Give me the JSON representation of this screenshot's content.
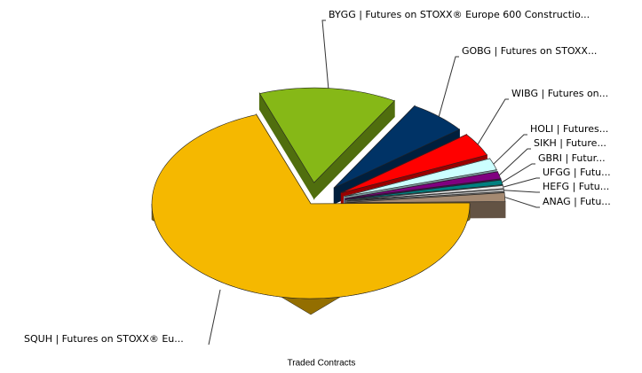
{
  "chart_data": {
    "type": "pie3d",
    "title": "Traded Contracts",
    "categories": [
      "BYGG | Futures on STOXX® Europe 600 Constructio...",
      "GOBG | Futures on STOXX...",
      "WIBG | Futures on...",
      "HOLI | Futures...",
      "SIKH | Future...",
      "GBRI | Futur...",
      "UFGG | Futu...",
      "HEFG | Futu...",
      "ANAG | Futu...",
      "SQUH | Futures on STOXX® Eu..."
    ],
    "values": [
      14,
      6,
      4,
      2,
      1.2,
      0.8,
      0.5,
      0.4,
      1.5,
      69.6
    ],
    "colors": [
      "#86b817",
      "#003366",
      "#ff0000",
      "#ccffff",
      "#800080",
      "#008080",
      "#e8e8e8",
      "#c0c0c0",
      "#a58a72",
      "#f5b800"
    ]
  }
}
